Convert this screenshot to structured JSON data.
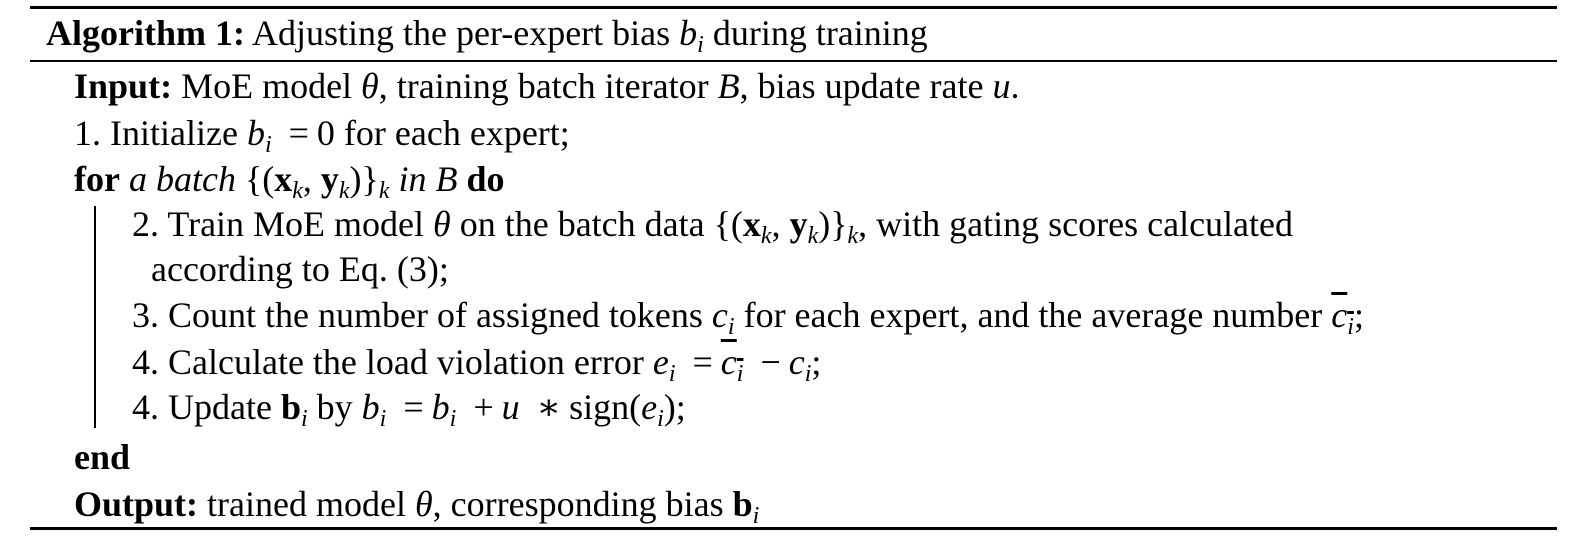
{
  "algorithm": {
    "title_label": "Algorithm 1:",
    "title_text": "Adjusting the per-expert bias",
    "title_symbol": "b",
    "title_symbol_sub": "i",
    "title_suffix": "during training",
    "input": {
      "label": "Input:",
      "text_1": "MoE model",
      "theta": "θ",
      "text_2": ", training batch iterator",
      "batch_symbol": "B",
      "text_3": ", bias update rate",
      "rate_symbol": "u",
      "text_4": "."
    },
    "step1": {
      "text_1": "1. Initialize",
      "var": "b",
      "sub": "i",
      "eq": "=",
      "value": "0",
      "text_2": "for each expert;"
    },
    "for_loop": {
      "kw_for": "for",
      "text_1": "a batch",
      "math_open": "{(",
      "x": "x",
      "x_sub": "k",
      "comma": ",",
      "y": "y",
      "y_sub": "k",
      "math_close": ")}",
      "set_sub": "k",
      "text_in": "in",
      "batch_symbol": "B",
      "kw_do": "do"
    },
    "step2": {
      "text_1": "2. Train MoE model",
      "theta": "θ",
      "text_2": "on the batch data",
      "math_open": "{(",
      "x": "x",
      "x_sub": "k",
      "comma": ",",
      "y": "y",
      "y_sub": "k",
      "math_close": ")}",
      "set_sub": "k",
      "text_3": ", with gating scores calculated",
      "continuation": "according to Eq. (3);"
    },
    "step3": {
      "text_1": "3. Count the number of assigned tokens",
      "var": "c",
      "sub": "i",
      "text_2": "for each expert, and the average number",
      "avg_var": "c",
      "avg_sub": "i",
      "text_3": ";"
    },
    "step4": {
      "text_1": "4. Calculate the load violation error",
      "e": "e",
      "e_sub": "i",
      "eq": "=",
      "avg_var": "c",
      "avg_sub": "i",
      "minus": "−",
      "c": "c",
      "c_sub": "i",
      "text_2": ";"
    },
    "step5": {
      "text_1": "4. Update",
      "bold_b": "b",
      "bold_b_sub": "i",
      "text_by": "by",
      "lhs": "b",
      "lhs_sub": "i",
      "eq": "=",
      "rhs_b": "b",
      "rhs_b_sub": "i",
      "plus": "+",
      "u": "u",
      "times": "∗",
      "sign_text": "sign(",
      "e": "e",
      "e_sub": "i",
      "close": ");"
    },
    "end_kw": "end",
    "output": {
      "label": "Output:",
      "text_1": "trained model",
      "theta": "θ",
      "text_2": ", corresponding bias",
      "bold_b": "b",
      "bold_b_sub": "i"
    }
  }
}
